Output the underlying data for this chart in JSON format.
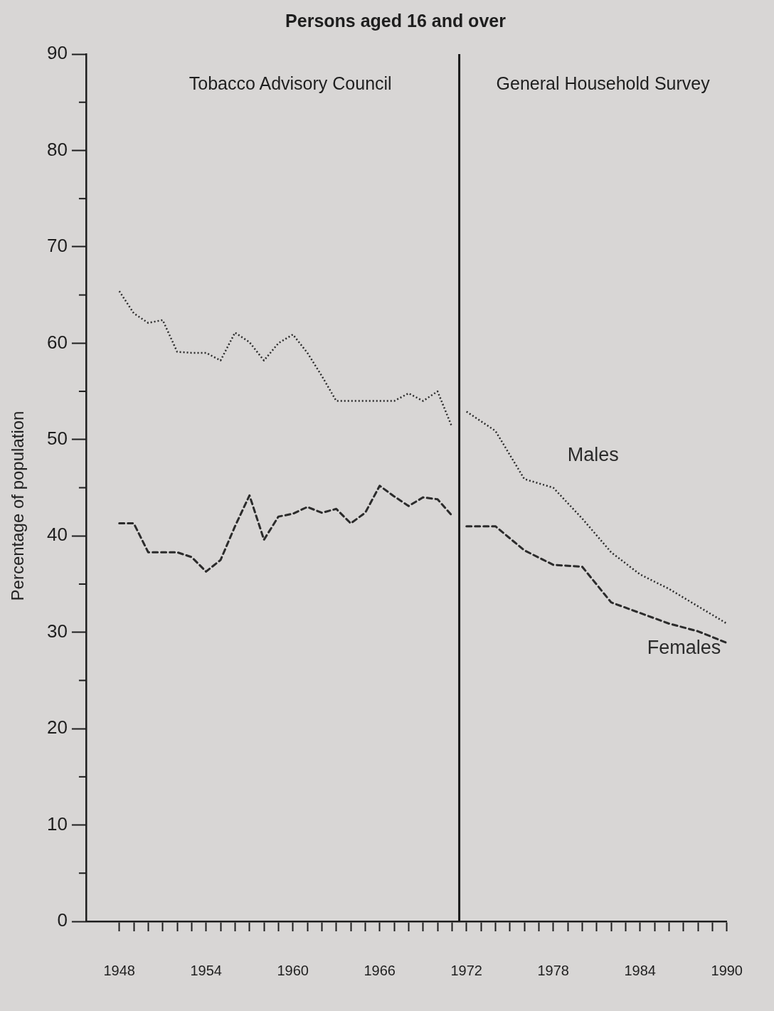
{
  "chart_data": {
    "type": "line",
    "title": "Persons aged 16 and over",
    "ylabel": "Percentage of population",
    "annotations": [
      "Tobacco Advisory Council",
      "General Household Survey"
    ],
    "ref_lines": [
      {
        "axis": "x",
        "value": 1971.5,
        "color": "#1a1a1a"
      }
    ],
    "xlim": [
      1945.7,
      1990
    ],
    "xticks": [
      1948,
      {
        "value": 1949,
        "label": null
      },
      {
        "value": 1950,
        "label": null
      },
      {
        "value": 1951,
        "label": null
      },
      {
        "value": 1952,
        "label": null
      },
      {
        "value": 1953,
        "label": null
      },
      1954,
      {
        "value": 1955,
        "label": null
      },
      {
        "value": 1956,
        "label": null
      },
      {
        "value": 1957,
        "label": null
      },
      {
        "value": 1958,
        "label": null
      },
      {
        "value": 1959,
        "label": null
      },
      1960,
      {
        "value": 1961,
        "label": null
      },
      {
        "value": 1962,
        "label": null
      },
      {
        "value": 1963,
        "label": null
      },
      {
        "value": 1964,
        "label": null
      },
      {
        "value": 1965,
        "label": null
      },
      1966,
      {
        "value": 1967,
        "label": null
      },
      {
        "value": 1968,
        "label": null
      },
      {
        "value": 1969,
        "label": null
      },
      {
        "value": 1970,
        "label": null
      },
      {
        "value": 1971,
        "label": null
      },
      1972,
      {
        "value": 1973,
        "label": null
      },
      {
        "value": 1974,
        "label": null
      },
      {
        "value": 1975,
        "label": null
      },
      {
        "value": 1976,
        "label": null
      },
      {
        "value": 1977,
        "label": null
      },
      1978,
      {
        "value": 1979,
        "label": null
      },
      {
        "value": 1980,
        "label": null
      },
      {
        "value": 1981,
        "label": null
      },
      {
        "value": 1982,
        "label": null
      },
      {
        "value": 1983,
        "label": null
      },
      1984,
      {
        "value": 1985,
        "label": null
      },
      {
        "value": 1986,
        "label": null
      },
      {
        "value": 1987,
        "label": null
      },
      {
        "value": 1988,
        "label": null
      },
      {
        "value": 1989,
        "label": null
      },
      1990
    ],
    "ylim": [
      0,
      90
    ],
    "yticks": [
      0,
      {
        "value": 5,
        "label": null
      },
      10,
      {
        "value": 15,
        "label": null
      },
      20,
      {
        "value": 25,
        "label": null
      },
      30,
      {
        "value": 35,
        "label": null
      },
      40,
      {
        "value": 45,
        "label": null
      },
      50,
      {
        "value": 55,
        "label": null
      },
      60,
      {
        "value": 65,
        "label": null
      },
      70,
      {
        "value": 75,
        "label": null
      },
      80,
      {
        "value": 85,
        "label": null
      },
      90
    ],
    "x": [
      1948,
      1949,
      1950,
      1951,
      1952,
      1953,
      1954,
      1955,
      1956,
      1957,
      1958,
      1959,
      1960,
      1961,
      1962,
      1963,
      1964,
      1965,
      1966,
      1967,
      1968,
      1969,
      1970,
      1971,
      1972,
      1974,
      1976,
      1978,
      1980,
      1982,
      1984,
      1986,
      1988,
      1990
    ],
    "grid": false,
    "legend": false,
    "marker": "none",
    "series": [
      {
        "name": "Males",
        "color": "#2b2b2b",
        "line_style": "dotted",
        "values": [
          65.4,
          63.1,
          62.1,
          62.4,
          59.1,
          59.0,
          59.0,
          58.2,
          61.1,
          60.1,
          58.2,
          60.0,
          60.9,
          59.0,
          56.6,
          54.0,
          54.0,
          54.0,
          54.0,
          54.0,
          54.8,
          54.0,
          55.0,
          51.3,
          52.9,
          50.9,
          45.9,
          45.0,
          41.8,
          38.3,
          36.0,
          34.5,
          32.7,
          30.9
        ]
      },
      {
        "name": "Females",
        "color": "#2b2b2b",
        "line_style": "dashed",
        "values": [
          41.3,
          41.3,
          38.3,
          38.3,
          38.3,
          37.8,
          36.3,
          37.5,
          41.0,
          44.2,
          39.6,
          42.0,
          42.3,
          43.0,
          42.4,
          42.8,
          41.3,
          42.4,
          45.2,
          44.1,
          43.1,
          44.0,
          43.8,
          42.1,
          41.0,
          41.0,
          38.5,
          37.0,
          36.8,
          33.1,
          32.0,
          30.9,
          30.1,
          28.9
        ]
      }
    ]
  }
}
